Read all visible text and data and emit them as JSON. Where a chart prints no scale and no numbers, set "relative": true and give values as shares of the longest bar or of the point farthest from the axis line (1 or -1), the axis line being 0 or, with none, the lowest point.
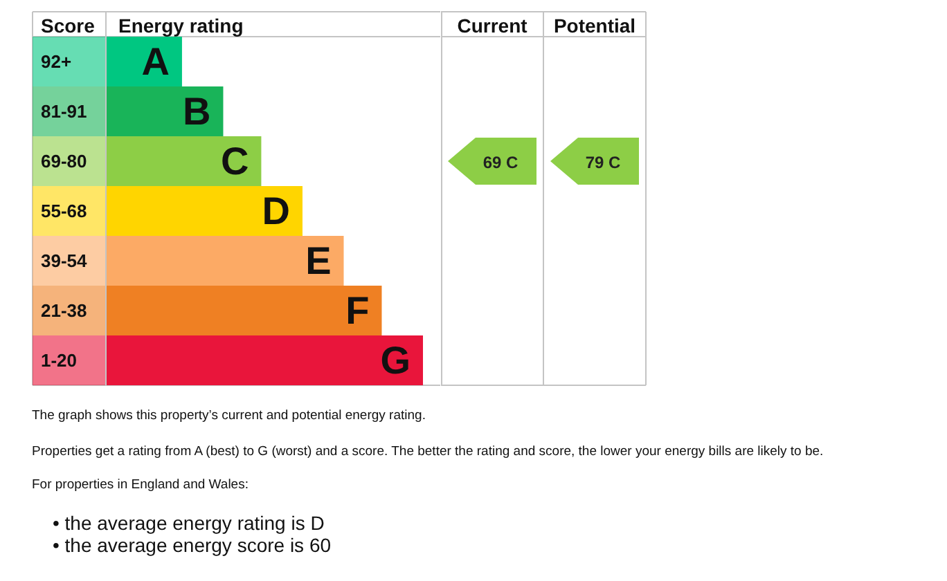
{
  "chart_data": [
    {
      "type": "bar",
      "orientation": "horizontal",
      "relative": true,
      "title": "Energy rating",
      "ylabel": "Score",
      "categories": [
        "92+",
        "81-91",
        "69-80",
        "55-68",
        "39-54",
        "21-38",
        "1-20"
      ],
      "values": [
        0.24,
        0.37,
        0.49,
        0.62,
        0.75,
        0.87,
        1
      ],
      "colors": [
        "#00c781",
        "#19b459",
        "#8dce46",
        "#ffd500",
        "#fcaa65",
        "#ef8023",
        "#e9153b"
      ],
      "annotations": [
        {
          "text": "A",
          "x": 0.24,
          "y": "92+"
        },
        {
          "text": "B",
          "x": 0.37,
          "y": "81-91"
        },
        {
          "text": "C",
          "x": 0.49,
          "y": "69-80"
        },
        {
          "text": "D",
          "x": 0.62,
          "y": "55-68"
        },
        {
          "text": "E",
          "x": 0.75,
          "y": "39-54"
        },
        {
          "text": "F",
          "x": 0.87,
          "y": "21-38"
        },
        {
          "text": "G",
          "x": 1,
          "y": "1-20"
        },
        "The graph shows this property’s current and potential energy rating.",
        "Properties get a rating from A (best) to G (worst) and a score. The better the rating and score, the lower your energy bills are likely to be.",
        "For properties in England and Wales:",
        "• the average energy rating is D",
        "• the average energy score is 60"
      ]
    },
    {
      "type": "other",
      "categories": [
        "Current",
        "Potential"
      ],
      "annotations": [
        {
          "text": "69 C",
          "x": "Current",
          "y": "69-80"
        },
        {
          "text": "79 C",
          "x": "Potential",
          "y": "69-80"
        }
      ]
    }
  ]
}
